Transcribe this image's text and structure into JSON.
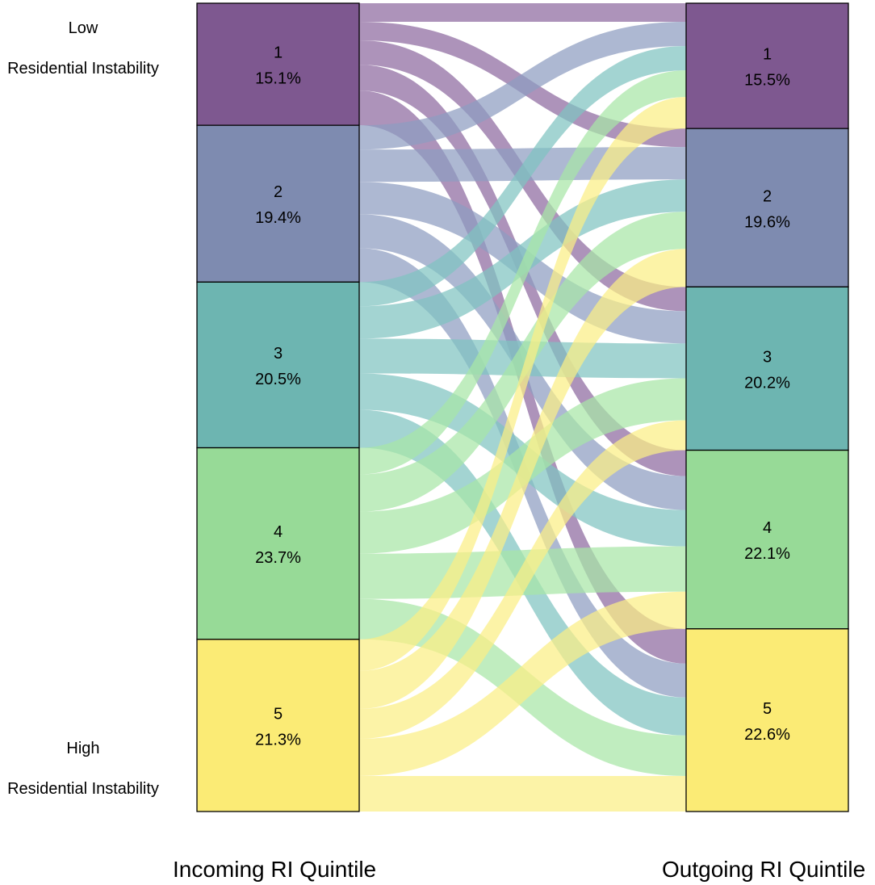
{
  "chart_data": {
    "type": "alluvial",
    "left_axis_label": "Incoming RI Quintile",
    "right_axis_label": "Outgoing RI Quintile",
    "annotations": {
      "low_top": "Low",
      "low_bottom": "Residential Instability",
      "high_top": "High",
      "high_bottom": "Residential Instability"
    },
    "incoming": [
      {
        "name": "1",
        "label": "15.1%",
        "value": 15.1,
        "color": "#7E5890"
      },
      {
        "name": "2",
        "label": "19.4%",
        "value": 19.4,
        "color": "#7E8BB0"
      },
      {
        "name": "3",
        "label": "20.5%",
        "value": 20.5,
        "color": "#6DB5B1"
      },
      {
        "name": "4",
        "label": "23.7%",
        "value": 23.7,
        "color": "#97DA97"
      },
      {
        "name": "5",
        "label": "21.3%",
        "value": 21.3,
        "color": "#FBEB75"
      }
    ],
    "outgoing": [
      {
        "name": "1",
        "label": "15.5%",
        "value": 15.5,
        "color": "#7E5890"
      },
      {
        "name": "2",
        "label": "19.6%",
        "value": 19.6,
        "color": "#7E8BB0"
      },
      {
        "name": "3",
        "label": "20.2%",
        "value": 20.2,
        "color": "#6DB5B1"
      },
      {
        "name": "4",
        "label": "22.1%",
        "value": 22.1,
        "color": "#97DA97"
      },
      {
        "name": "5",
        "label": "22.6%",
        "value": 22.6,
        "color": "#FBEB75"
      }
    ],
    "flow_colors": [
      "#8E6AA0",
      "#8E9CC0",
      "#7FC4C0",
      "#A8E6A6",
      "#FBEE85"
    ],
    "flows": [
      {
        "from": 1,
        "to": 1,
        "value": 2.3
      },
      {
        "from": 1,
        "to": 2,
        "value": 2.3
      },
      {
        "from": 1,
        "to": 3,
        "value": 3.0
      },
      {
        "from": 1,
        "to": 4,
        "value": 3.2
      },
      {
        "from": 1,
        "to": 5,
        "value": 4.3
      },
      {
        "from": 2,
        "to": 1,
        "value": 3.0
      },
      {
        "from": 2,
        "to": 2,
        "value": 4.0
      },
      {
        "from": 2,
        "to": 3,
        "value": 4.0
      },
      {
        "from": 2,
        "to": 4,
        "value": 4.2
      },
      {
        "from": 2,
        "to": 5,
        "value": 4.2
      },
      {
        "from": 3,
        "to": 1,
        "value": 3.0
      },
      {
        "from": 3,
        "to": 2,
        "value": 4.0
      },
      {
        "from": 3,
        "to": 3,
        "value": 4.3
      },
      {
        "from": 3,
        "to": 4,
        "value": 4.5
      },
      {
        "from": 3,
        "to": 5,
        "value": 4.7
      },
      {
        "from": 4,
        "to": 1,
        "value": 3.3
      },
      {
        "from": 4,
        "to": 2,
        "value": 4.6
      },
      {
        "from": 4,
        "to": 3,
        "value": 5.2
      },
      {
        "from": 4,
        "to": 4,
        "value": 5.6
      },
      {
        "from": 4,
        "to": 5,
        "value": 5.0
      },
      {
        "from": 5,
        "to": 1,
        "value": 3.9
      },
      {
        "from": 5,
        "to": 2,
        "value": 4.7
      },
      {
        "from": 5,
        "to": 3,
        "value": 3.7
      },
      {
        "from": 5,
        "to": 4,
        "value": 4.6
      },
      {
        "from": 5,
        "to": 5,
        "value": 4.4
      }
    ]
  }
}
